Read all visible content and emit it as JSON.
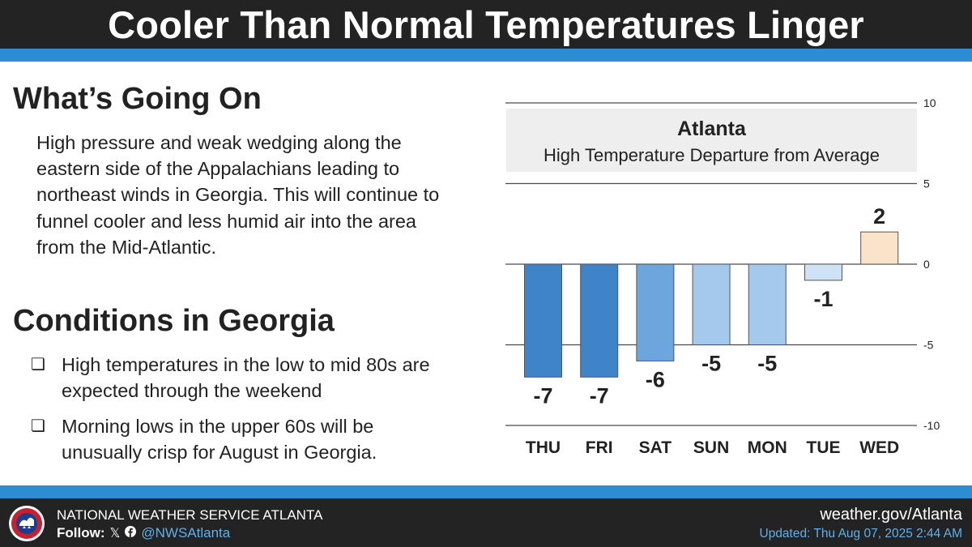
{
  "header": {
    "title": "Cooler Than Normal Temperatures Linger"
  },
  "left": {
    "section1_title": "What’s Going On",
    "section1_text": "High pressure and weak wedging along the eastern side of the Appalachians leading to northeast winds in Georgia. This will continue to funnel cooler and less humid air into the area from the Mid-Atlantic.",
    "section2_title": "Conditions in Georgia",
    "bullets": [
      "High temperatures in the low to mid 80s are expected through the weekend",
      "Morning lows in the upper 60s will be unusually crisp for August in Georgia."
    ],
    "bullet_icon": "checkbox-icon"
  },
  "chart_data": {
    "type": "bar",
    "title": "Atlanta",
    "subtitle": "High Temperature Departure from Average",
    "categories": [
      "THU",
      "FRI",
      "SAT",
      "SUN",
      "MON",
      "TUE",
      "WED"
    ],
    "values": [
      -7,
      -7,
      -6,
      -5,
      -5,
      -1,
      2
    ],
    "value_labels": [
      "-7",
      "-7",
      "-6",
      "-5",
      "-5",
      "-1",
      "2"
    ],
    "bar_colors": [
      "#3f84c9",
      "#3f84c9",
      "#6da6dd",
      "#a4c9ec",
      "#a4c9ec",
      "#cfe2f5",
      "#fbe3c9"
    ],
    "ylim": [
      -10,
      10
    ],
    "yticks": [
      10,
      5,
      0,
      -5,
      -10
    ],
    "ytick_labels": [
      "10",
      "5",
      "0",
      "-5",
      "-10"
    ],
    "grid": true,
    "yaxis_side": "right"
  },
  "footer": {
    "org": "NATIONAL WEATHER SERVICE ATLANTA",
    "follow_label": "Follow:",
    "x_icon": "x-logo-icon",
    "facebook_icon": "facebook-icon",
    "handle": "@NWSAtlanta",
    "website": "weather.gov/Atlanta",
    "updated": "Updated: Thu Aug 07, 2025 2:44 AM",
    "logo_icon": "nws-logo-icon"
  },
  "colors": {
    "accent_blue": "#2b8ed4",
    "dark_bar": "#232323",
    "link_blue": "#5fb0ea"
  }
}
